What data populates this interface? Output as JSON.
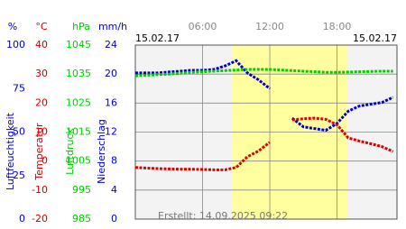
{
  "chart_data": {
    "type": "line",
    "date_left": "15.02.17",
    "date_right": "15.02.17",
    "footer": "Erstellt: 14.09.2025 09:22",
    "x": [
      0,
      1,
      2,
      3,
      4,
      5,
      6,
      7,
      8,
      9,
      10,
      11,
      12,
      13,
      14,
      15,
      16,
      17,
      18,
      19,
      20,
      21,
      22,
      23
    ],
    "xlim": [
      0,
      23.35
    ],
    "xticks": [
      {
        "value": 6,
        "label": "06:00"
      },
      {
        "value": 12,
        "label": "12:00"
      },
      {
        "value": 18,
        "label": "18:00"
      }
    ],
    "daylight": [
      8.6,
      18.9
    ],
    "y_axes": [
      {
        "unit": "%",
        "label": "Luftfeuchtigkeit",
        "color": "#0000cc",
        "ylim": [
          0,
          100
        ],
        "yticks": [
          0,
          25,
          50,
          75,
          100
        ]
      },
      {
        "unit": "°C",
        "label": "Temperatur",
        "color": "#cc0000",
        "ylim": [
          -20,
          40
        ],
        "yticks": [
          -20,
          -10,
          0,
          10,
          20,
          30,
          40
        ]
      },
      {
        "unit": "hPa",
        "label": "Luftdruck",
        "color": "#00cc00",
        "ylim": [
          985,
          1045
        ],
        "yticks": [
          985,
          995,
          1005,
          1015,
          1025,
          1035,
          1045
        ]
      },
      {
        "unit": "mm/h",
        "label": "Niederschlag",
        "color": "#0000cc",
        "ylim": [
          0,
          24
        ],
        "yticks": [
          0,
          4,
          8,
          12,
          16,
          20,
          24
        ]
      }
    ],
    "grid": true,
    "series": [
      {
        "name": "Luftfeuchtigkeit",
        "axis": 0,
        "color": "#0000cc",
        "values": [
          84,
          84,
          84,
          84.5,
          85,
          85.5,
          85.5,
          86,
          88,
          91,
          84,
          80,
          75,
          null,
          58,
          53,
          52,
          51,
          55,
          62,
          65,
          66,
          67,
          70
        ]
      },
      {
        "name": "Temperatur",
        "axis": 1,
        "color": "#dd0000",
        "values": [
          -2.2,
          -2.4,
          -2.6,
          -2.7,
          -2.8,
          -2.8,
          -2.9,
          -3.0,
          -3.0,
          -2.2,
          1.5,
          3.5,
          6.5,
          null,
          14.2,
          14.6,
          14.8,
          14.4,
          12.5,
          8.0,
          6.9,
          6.0,
          5.0,
          3.3
        ]
      },
      {
        "name": "Luftdruck",
        "axis": 2,
        "color": "#00cc00",
        "values": [
          1034.4,
          1034.6,
          1034.8,
          1035,
          1035.3,
          1035.6,
          1035.8,
          1036,
          1036.2,
          1036.4,
          1036.6,
          1036.6,
          1036.6,
          1036.4,
          1036.2,
          1036,
          1035.8,
          1035.6,
          1035.6,
          1035.7,
          1035.8,
          1035.9,
          1036,
          1036
        ]
      }
    ]
  }
}
